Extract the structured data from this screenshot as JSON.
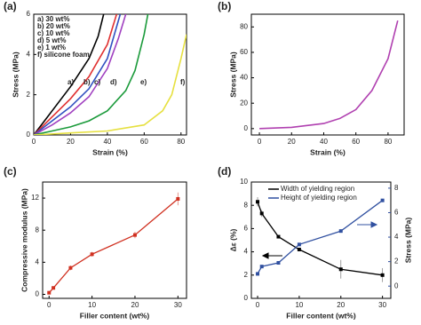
{
  "chart_data": [
    {
      "type": "line",
      "label": "(a)",
      "x_label": "Strain (%)",
      "y_label": "Stress (MPa)",
      "xlim": [
        0,
        83
      ],
      "ylim": [
        0,
        6
      ],
      "xticks": [
        0,
        20,
        40,
        60,
        80
      ],
      "yticks": [
        0,
        2,
        4,
        6
      ],
      "annotations": [
        "a)",
        "b)",
        "c)",
        "d)",
        "e)",
        "f)"
      ],
      "series": [
        {
          "name": "a) 30 wt%",
          "color": "#000000",
          "x": [
            0,
            5,
            10,
            20,
            30,
            35,
            38
          ],
          "values": [
            0,
            0.6,
            1.2,
            2.4,
            3.8,
            4.9,
            6
          ]
        },
        {
          "name": "b) 20 wt%",
          "color": "#e03030",
          "x": [
            0,
            10,
            20,
            30,
            40,
            45
          ],
          "values": [
            0,
            0.9,
            1.8,
            2.9,
            4.5,
            6
          ]
        },
        {
          "name": "c) 10 wt%",
          "color": "#3050c0",
          "x": [
            0,
            10,
            20,
            30,
            40,
            47
          ],
          "values": [
            0,
            0.7,
            1.4,
            2.3,
            3.8,
            6
          ]
        },
        {
          "name": "d)   5 wt%",
          "color": "#a040c0",
          "x": [
            0,
            10,
            20,
            30,
            40,
            46,
            50
          ],
          "values": [
            0,
            0.5,
            1.1,
            1.9,
            3.3,
            4.8,
            6
          ]
        },
        {
          "name": "e)   1 wt%",
          "color": "#1a9a3a",
          "x": [
            0,
            10,
            20,
            30,
            40,
            50,
            55,
            60,
            62
          ],
          "values": [
            0,
            0.2,
            0.4,
            0.7,
            1.2,
            2.2,
            3.2,
            5,
            6
          ]
        },
        {
          "name": "f) silicone foam",
          "color": "#e6e040",
          "x": [
            0,
            20,
            40,
            60,
            70,
            75,
            80,
            83
          ],
          "values": [
            0,
            0.1,
            0.2,
            0.5,
            1.2,
            2,
            3.8,
            5
          ]
        }
      ]
    },
    {
      "type": "line",
      "label": "(b)",
      "x_label": "Strain (%)",
      "y_label": "Stress (MPa)",
      "xlim": [
        -5,
        90
      ],
      "ylim": [
        -5,
        90
      ],
      "xticks": [
        0,
        20,
        40,
        60,
        80
      ],
      "yticks": [
        0,
        20,
        40,
        60,
        80
      ],
      "series": [
        {
          "color": "#b040b0",
          "x": [
            0,
            20,
            40,
            50,
            60,
            70,
            80,
            86
          ],
          "values": [
            0,
            1,
            4,
            8,
            15,
            30,
            55,
            85
          ]
        }
      ]
    },
    {
      "type": "line",
      "label": "(c)",
      "x_label": "Filler content (wt%)",
      "y_label": "Compressive modulus (MPa)",
      "xlim": [
        -1.5,
        32
      ],
      "ylim": [
        -0.5,
        14
      ],
      "xticks": [
        0,
        10,
        20,
        30
      ],
      "yticks": [
        0,
        4,
        8,
        12
      ],
      "series": [
        {
          "color": "#d03020",
          "x": [
            0,
            1,
            5,
            10,
            20,
            30
          ],
          "values": [
            0.2,
            0.8,
            3.3,
            5.0,
            7.4,
            11.9
          ],
          "errors": [
            0.1,
            0.2,
            0.3,
            0.3,
            0.4,
            0.8
          ]
        }
      ]
    },
    {
      "type": "line",
      "label": "(d)",
      "x_label": "Filler content (wt%)",
      "y_label": "Δε (%)",
      "y2_label": "Stress (MPa)",
      "xlim": [
        -1.5,
        32
      ],
      "ylim": [
        0,
        10
      ],
      "y2lim": [
        -1,
        8.5
      ],
      "xticks": [
        0,
        10,
        20,
        30
      ],
      "yticks": [
        0,
        2,
        4,
        6,
        8,
        10
      ],
      "y2ticks": [
        0,
        2,
        4,
        6,
        8
      ],
      "series": [
        {
          "name": "Width of yielding region",
          "color": "#000000",
          "x": [
            0,
            1,
            5,
            10,
            20,
            30
          ],
          "values": [
            8.3,
            7.3,
            5.3,
            4.2,
            2.5,
            2.0
          ],
          "errors": [
            0.4,
            0.3,
            0.1,
            0.1,
            0.8,
            0.6
          ]
        },
        {
          "name": "Height of yielding region",
          "color": "#3050a0",
          "axis": "y2",
          "x": [
            0,
            1,
            5,
            10,
            20,
            30
          ],
          "values": [
            1.0,
            1.6,
            1.9,
            3.4,
            4.5,
            7.0
          ]
        }
      ]
    }
  ]
}
